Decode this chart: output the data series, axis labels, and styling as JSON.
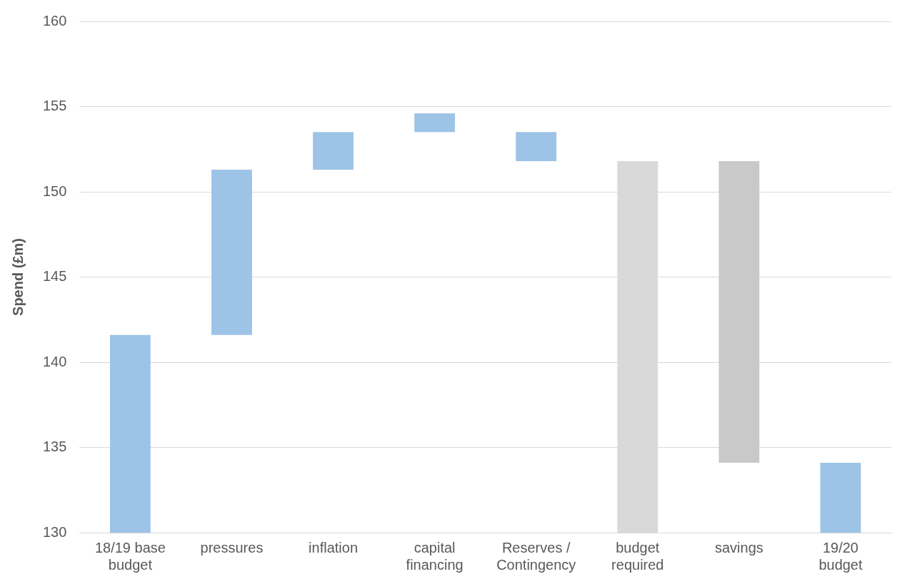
{
  "chart_data": {
    "type": "bar",
    "ylabel": "Spend (£m)",
    "categories": [
      "18/19 base budget",
      "pressures",
      "inflation",
      "capital financing",
      "Reserves / Contingency",
      "budget required",
      "savings",
      "19/20 budget"
    ],
    "base": [
      130,
      141.6,
      151.3,
      153.5,
      153.5,
      130,
      151.8,
      130
    ],
    "values": [
      11.6,
      9.7,
      2.2,
      1.1,
      -1.7,
      21.8,
      -17.7,
      4.1
    ],
    "colors": [
      "#9dc3e6",
      "#9dc3e6",
      "#9dc3e6",
      "#9dc3e6",
      "#9dc3e6",
      "#d9d9d9",
      "#c9c9c9",
      "#9dc3e6"
    ],
    "ylim": [
      130,
      160
    ],
    "yticks": [
      130,
      135,
      140,
      145,
      150,
      155,
      160
    ],
    "grid": "y"
  }
}
